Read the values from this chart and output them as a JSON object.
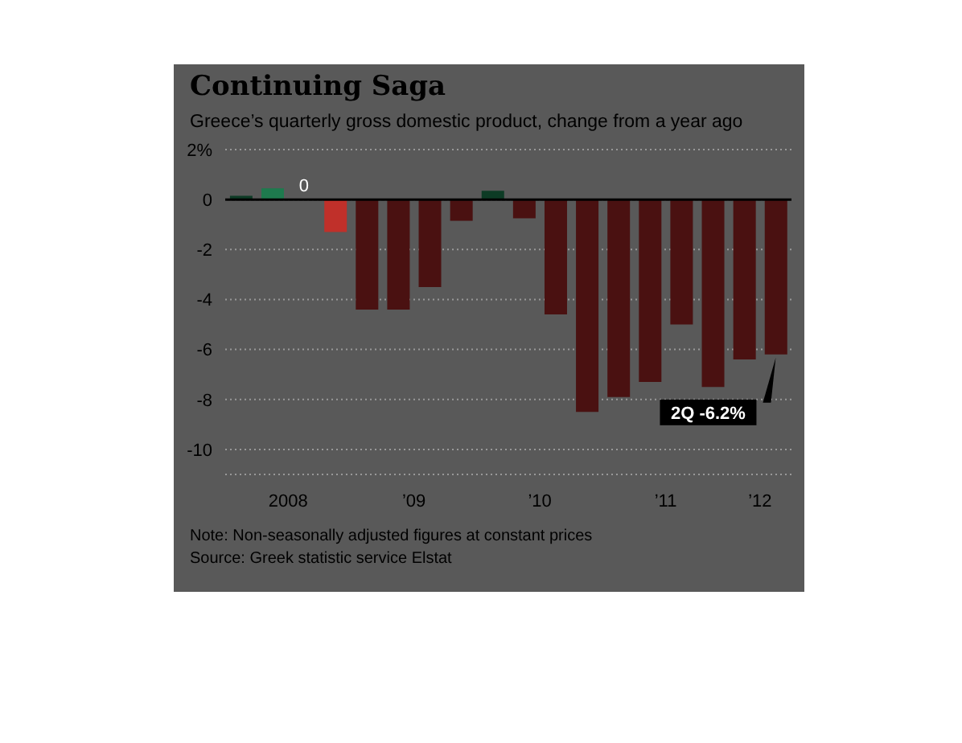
{
  "chart_data": {
    "type": "bar",
    "title": "Continuing Saga",
    "subtitle": "Greece’s quarterly gross domestic product, change from a year ago",
    "categories": [
      null,
      "2008",
      null,
      null,
      null,
      "’09",
      null,
      null,
      null,
      "’10",
      null,
      null,
      null,
      "’11",
      null,
      null,
      "’12",
      null
    ],
    "values": [
      0.15,
      0.45,
      0,
      -1.3,
      -4.4,
      -4.4,
      -3.5,
      -0.85,
      0.35,
      -0.75,
      -4.6,
      -8.5,
      -7.9,
      -7.3,
      -5.0,
      -7.5,
      -6.4,
      -6.2
    ],
    "colors": [
      "#0d3b25",
      "#1e7a4e",
      "#1e7a4e",
      "#c0302a",
      "#4a1111",
      "#4a1111",
      "#4a1111",
      "#4a1111",
      "#0d3b25",
      "#4a1111",
      "#4a1111",
      "#4a1111",
      "#4a1111",
      "#4a1111",
      "#4a1111",
      "#4a1111",
      "#4a1111",
      "#4a1111"
    ],
    "value_labels": [
      null,
      null,
      "0",
      null,
      null,
      null,
      null,
      null,
      null,
      null,
      null,
      null,
      null,
      null,
      null,
      null,
      null,
      null
    ],
    "ylim": [
      -11,
      2
    ],
    "yticks": [
      {
        "value": 2,
        "label": "2%"
      },
      0,
      -2,
      -4,
      -6,
      -8,
      -10
    ],
    "grid": "y",
    "ref_lines": [
      {
        "axis": "y",
        "value": 0,
        "color": "#000000"
      }
    ],
    "annotations": [
      {
        "text": "2Q -6.2%",
        "y": -6.2
      },
      "Note: Non-seasonally adjusted figures at constant prices",
      "Source: Greek statistic service Elstat"
    ]
  }
}
